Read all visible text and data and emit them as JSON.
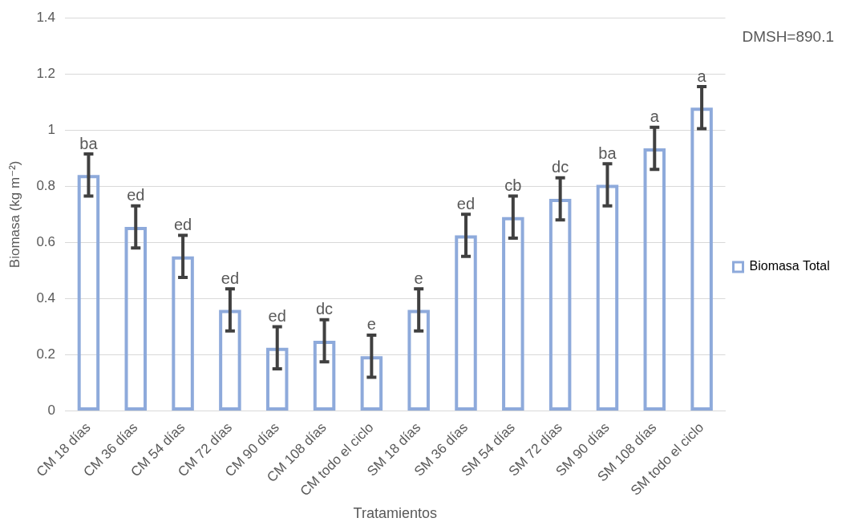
{
  "chart_data": {
    "type": "bar",
    "xlabel": "Tratamientos",
    "ylabel": "Biomasa (kg m⁻²)",
    "categories": [
      "CM 18 días",
      "CM 36 días",
      "CM 54 días",
      "CM 72 días",
      "CM 90 días",
      "CM 108 días",
      "CM todo el ciclo",
      "SM 18 días",
      "SM 36 días",
      "SM 54 días",
      "SM 72 días",
      "SM 90 días",
      "SM 108 días",
      "SM todo el ciclo"
    ],
    "series": [
      {
        "name": "Biomasa Total",
        "color": "#8eaadb",
        "values": [
          0.84,
          0.655,
          0.55,
          0.36,
          0.225,
          0.25,
          0.195,
          0.36,
          0.625,
          0.69,
          0.755,
          0.805,
          0.935,
          1.08
        ],
        "errors": [
          0.075,
          0.075,
          0.075,
          0.075,
          0.075,
          0.075,
          0.075,
          0.075,
          0.075,
          0.075,
          0.075,
          0.075,
          0.075,
          0.075
        ]
      }
    ],
    "ylim": [
      0,
      1.4
    ],
    "yticks": [
      0,
      0.2,
      0.4,
      0.6,
      0.8,
      1,
      1.2,
      1.4
    ],
    "grid": "y",
    "legend": "right",
    "annotations": [
      "DMSH=890.1",
      {
        "text": "ba",
        "x": "CM 18 días",
        "y": 0.915
      },
      {
        "text": "ed",
        "x": "CM 36 días",
        "y": 0.73
      },
      {
        "text": "ed",
        "x": "CM 54 días",
        "y": 0.625
      },
      {
        "text": "ed",
        "x": "CM 72 días",
        "y": 0.435
      },
      {
        "text": "ed",
        "x": "CM 90 días",
        "y": 0.3
      },
      {
        "text": "dc",
        "x": "CM 108 días",
        "y": 0.325
      },
      {
        "text": "e",
        "x": "CM todo el ciclo",
        "y": 0.27
      },
      {
        "text": "e",
        "x": "SM 18 días",
        "y": 0.435
      },
      {
        "text": "ed",
        "x": "SM 36 días",
        "y": 0.7
      },
      {
        "text": "cb",
        "x": "SM 54 días",
        "y": 0.765
      },
      {
        "text": "dc",
        "x": "SM 72 días",
        "y": 0.83
      },
      {
        "text": "ba",
        "x": "SM 90 días",
        "y": 0.88
      },
      {
        "text": "a",
        "x": "SM 108 días",
        "y": 1.01
      },
      {
        "text": "a",
        "x": "SM todo el ciclo",
        "y": 1.155
      }
    ]
  }
}
